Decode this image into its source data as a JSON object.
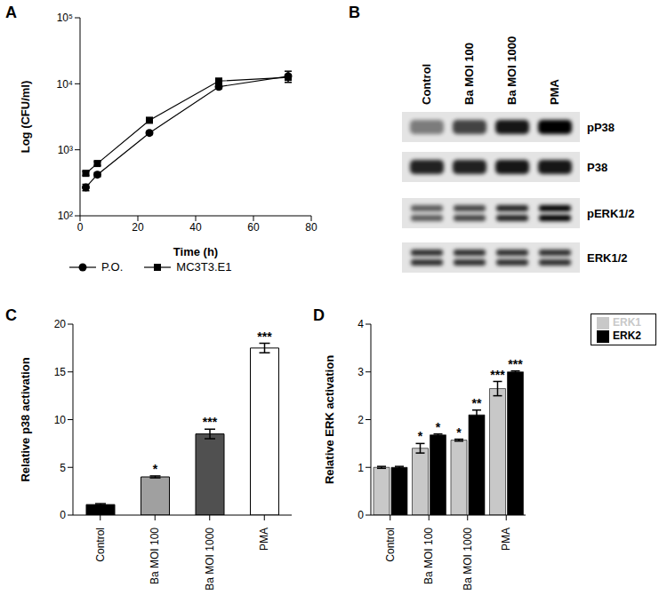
{
  "chart_data": [
    {
      "panel": "A",
      "type": "line",
      "x_label": "Time (h)",
      "y_label": "Log (CFU/ml)",
      "xlim": [
        0,
        80
      ],
      "xticks": [
        0,
        20,
        40,
        60,
        80
      ],
      "ylim": [
        100,
        100000
      ],
      "yticks": [
        {
          "value": 100,
          "label": "10²"
        },
        {
          "value": 1000,
          "label": "10³"
        },
        {
          "value": 10000,
          "label": "10⁴"
        },
        {
          "value": 100000,
          "label": "10⁵"
        }
      ],
      "log": "y",
      "legend": "bottom",
      "x": [
        2,
        6,
        24,
        48,
        72
      ],
      "series": [
        {
          "name": "P.O.",
          "color": "#000000",
          "marker": "circle",
          "values": [
            270,
            420,
            1800,
            9000,
            13000
          ],
          "errors": [
            30,
            30,
            100,
            600,
            2500
          ]
        },
        {
          "name": "MC3T3.E1",
          "color": "#000000",
          "marker": "square",
          "values": [
            440,
            620,
            2800,
            11000,
            12500
          ],
          "errors": [
            30,
            40,
            150,
            800,
            1000
          ]
        }
      ]
    },
    {
      "panel": "B",
      "type": "blot",
      "lanes": [
        "Control",
        "Ba MOI 100",
        "Ba MOI 1000",
        "PMA"
      ],
      "rows": [
        {
          "label": "pP38",
          "bands": 1,
          "intensity": [
            0.45,
            0.7,
            0.9,
            1.0
          ]
        },
        {
          "label": "P38",
          "bands": 1,
          "intensity": [
            0.85,
            0.85,
            0.9,
            0.9
          ]
        },
        {
          "label": "pERK1/2",
          "bands": 2,
          "intensity": [
            0.6,
            0.7,
            0.85,
            1.0
          ]
        },
        {
          "label": "ERK1/2",
          "bands": 2,
          "intensity": [
            0.8,
            0.8,
            0.8,
            0.8
          ]
        }
      ]
    },
    {
      "panel": "C",
      "type": "bar",
      "y_label": "Relative p38 activation",
      "categories": [
        "Control",
        "Ba MOI 100",
        "Ba MOI 1000",
        "PMA"
      ],
      "values": [
        1.1,
        4.0,
        8.5,
        17.5
      ],
      "errors": [
        0.1,
        0.1,
        0.5,
        0.5
      ],
      "colors": [
        "#000000",
        "#a0a0a0",
        "#505050",
        "#ffffff"
      ],
      "annotations": [
        null,
        "*",
        "***",
        "***"
      ],
      "ylim": [
        0,
        20
      ],
      "yticks": [
        0,
        5,
        10,
        15,
        20
      ]
    },
    {
      "panel": "D",
      "type": "bar",
      "y_label": "Relative ERK activation",
      "categories": [
        "Control",
        "Ba MOI 100",
        "Ba MOI 1000",
        "PMA"
      ],
      "legend": "top-right",
      "series": [
        {
          "name": "ERK1",
          "color": "#c8c8c8",
          "values": [
            1.0,
            1.4,
            1.57,
            2.65
          ],
          "errors": [
            0.02,
            0.1,
            0.02,
            0.15
          ],
          "annotations": [
            null,
            "*",
            "*",
            "***"
          ]
        },
        {
          "name": "ERK2",
          "color": "#000000",
          "values": [
            1.0,
            1.68,
            2.1,
            3.0
          ],
          "errors": [
            0.02,
            0.02,
            0.1,
            0.02
          ],
          "annotations": [
            null,
            "*",
            "**",
            "***"
          ]
        }
      ],
      "ylim": [
        0,
        4
      ],
      "yticks": [
        0,
        1,
        2,
        3,
        4
      ]
    }
  ]
}
